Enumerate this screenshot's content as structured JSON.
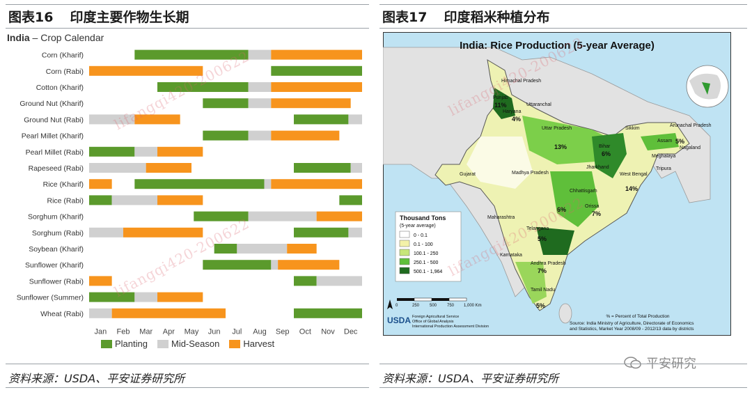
{
  "left_figure": {
    "heading_number": "图表16",
    "heading_text": "印度主要作物生长期",
    "chart_title_bold": "India",
    "chart_title_rest": " – Crop Calendar",
    "source": "资料来源：USDA、平安证券研究所"
  },
  "right_figure": {
    "heading_number": "图表17",
    "heading_text": "印度稻米种植分布",
    "map_title": "India: Rice Production (5-year Average)",
    "legend_title": "Thousand Tons",
    "legend_subtitle": "(5-year average)",
    "legend_classes": [
      {
        "label": "0 - 0.1",
        "color": "#ffffff"
      },
      {
        "label": "0.1 - 100",
        "color": "#f3f1a8"
      },
      {
        "label": "100.1 - 250",
        "color": "#c7e67a"
      },
      {
        "label": "250.1 - 500",
        "color": "#5fbf3a"
      },
      {
        "label": "500.1 - 1,964",
        "color": "#1f6b1f"
      }
    ],
    "scale_labels": [
      "0",
      "250",
      "500",
      "750",
      "1,000 Km"
    ],
    "note": "% = Percent of Total Production",
    "map_source_1": "Source: India Ministry of Agriculture, Directorate of Economics",
    "map_source_2": "and Statistics, Market Year 2008/09 - 2012/13 data by districts",
    "usda_logo": "USDA",
    "usda_line1": "Foreign Agricultural Service",
    "usda_line2": "Office of Global Analysis",
    "usda_line3": "International Production Assessment Division",
    "state_labels": [
      {
        "name": "Himachal Pradesh",
        "pct": ""
      },
      {
        "name": "Punjab",
        "pct": "11%"
      },
      {
        "name": "Haryana",
        "pct": "4%"
      },
      {
        "name": "Uttaranchal",
        "pct": ""
      },
      {
        "name": "Uttar Pradesh",
        "pct": "13%"
      },
      {
        "name": "Bihar",
        "pct": "6%"
      },
      {
        "name": "Sikkim",
        "pct": ""
      },
      {
        "name": "Arunachal Pradesh",
        "pct": ""
      },
      {
        "name": "Assam",
        "pct": "5%"
      },
      {
        "name": "Nagaland",
        "pct": ""
      },
      {
        "name": "Meghalaya",
        "pct": ""
      },
      {
        "name": "Tripura",
        "pct": ""
      },
      {
        "name": "Jharkhand",
        "pct": ""
      },
      {
        "name": "West Bengal",
        "pct": "14%"
      },
      {
        "name": "Gujarat",
        "pct": ""
      },
      {
        "name": "Madhya Pradesh",
        "pct": ""
      },
      {
        "name": "Chhattisgarh",
        "pct": "6%"
      },
      {
        "name": "Orissa",
        "pct": "7%"
      },
      {
        "name": "Maharashtra",
        "pct": ""
      },
      {
        "name": "Telangana",
        "pct": "5%"
      },
      {
        "name": "Karnataka",
        "pct": ""
      },
      {
        "name": "Andhra Pradesh",
        "pct": "7%"
      },
      {
        "name": "Tamil Nadu",
        "pct": "5%"
      }
    ],
    "source": "资料来源：USDA、平安证券研究所"
  },
  "watermark": "lifangqi420-200622",
  "brand": "平安研究",
  "colors": {
    "planting": "#5b9a2c",
    "midseason": "#d0d0d0",
    "harvest": "#f7941d"
  },
  "chart_data": {
    "type": "gantt",
    "title": "India – Crop Calendar",
    "x_unit": "month (0 = start of Jan, 12 = end of Dec)",
    "months": [
      "Jan",
      "Feb",
      "Mar",
      "Apr",
      "May",
      "Jun",
      "Jul",
      "Aug",
      "Sep",
      "Oct",
      "Nov",
      "Dec"
    ],
    "legend": [
      {
        "key": "planting",
        "label": "Planting"
      },
      {
        "key": "midseason",
        "label": "Mid-Season"
      },
      {
        "key": "harvest",
        "label": "Harvest"
      }
    ],
    "crops": [
      {
        "name": "Corn (Kharif)",
        "segments": [
          [
            "planting",
            2.0,
            7.0
          ],
          [
            "midseason",
            7.0,
            8.0
          ],
          [
            "harvest",
            8.0,
            12.0
          ]
        ]
      },
      {
        "name": "Corn (Rabi)",
        "segments": [
          [
            "harvest",
            0.0,
            5.0
          ],
          [
            "planting",
            8.0,
            12.0
          ]
        ]
      },
      {
        "name": "Cotton (Kharif)",
        "segments": [
          [
            "planting",
            3.0,
            7.0
          ],
          [
            "midseason",
            7.0,
            8.0
          ],
          [
            "harvest",
            8.0,
            12.0
          ]
        ]
      },
      {
        "name": "Ground Nut (Kharif)",
        "segments": [
          [
            "planting",
            5.0,
            7.0
          ],
          [
            "midseason",
            7.0,
            8.0
          ],
          [
            "harvest",
            8.0,
            11.5
          ]
        ]
      },
      {
        "name": "Ground Nut (Rabi)",
        "segments": [
          [
            "midseason",
            0.0,
            2.0
          ],
          [
            "harvest",
            2.0,
            4.0
          ],
          [
            "planting",
            9.0,
            11.4
          ],
          [
            "midseason",
            11.4,
            12.0
          ]
        ]
      },
      {
        "name": "Pearl Millet (Kharif)",
        "segments": [
          [
            "planting",
            5.0,
            7.0
          ],
          [
            "midseason",
            7.0,
            8.0
          ],
          [
            "harvest",
            8.0,
            11.0
          ]
        ]
      },
      {
        "name": "Pearl Millet (Rabi)",
        "segments": [
          [
            "planting",
            0.0,
            2.0
          ],
          [
            "midseason",
            2.0,
            3.0
          ],
          [
            "harvest",
            3.0,
            5.0
          ]
        ]
      },
      {
        "name": "Rapeseed (Rabi)",
        "segments": [
          [
            "midseason",
            0.0,
            2.5
          ],
          [
            "harvest",
            2.5,
            4.5
          ],
          [
            "planting",
            9.0,
            11.5
          ],
          [
            "midseason",
            11.5,
            12.0
          ]
        ]
      },
      {
        "name": "Rice (Kharif)",
        "segments": [
          [
            "harvest",
            0.0,
            1.0
          ],
          [
            "planting",
            2.0,
            7.7
          ],
          [
            "midseason",
            7.7,
            8.0
          ],
          [
            "harvest",
            8.0,
            12.0
          ]
        ]
      },
      {
        "name": "Rice (Rabi)",
        "segments": [
          [
            "planting",
            0.0,
            1.0
          ],
          [
            "midseason",
            1.0,
            3.0
          ],
          [
            "harvest",
            3.0,
            5.0
          ],
          [
            "planting",
            11.0,
            12.0
          ]
        ]
      },
      {
        "name": "Sorghum (Kharif)",
        "segments": [
          [
            "planting",
            4.6,
            7.0
          ],
          [
            "midseason",
            7.0,
            10.0
          ],
          [
            "harvest",
            10.0,
            12.0
          ]
        ]
      },
      {
        "name": "Sorghum (Rabi)",
        "segments": [
          [
            "midseason",
            0.0,
            1.5
          ],
          [
            "harvest",
            1.5,
            5.0
          ],
          [
            "planting",
            9.0,
            11.4
          ],
          [
            "midseason",
            11.4,
            12.0
          ]
        ]
      },
      {
        "name": "Soybean (Kharif)",
        "segments": [
          [
            "planting",
            5.5,
            6.5
          ],
          [
            "midseason",
            6.5,
            8.7
          ],
          [
            "harvest",
            8.7,
            10.0
          ]
        ]
      },
      {
        "name": "Sunflower (Kharif)",
        "segments": [
          [
            "planting",
            5.0,
            8.0
          ],
          [
            "midseason",
            8.0,
            8.3
          ],
          [
            "harvest",
            8.3,
            11.0
          ]
        ]
      },
      {
        "name": "Sunflower (Rabi)",
        "segments": [
          [
            "harvest",
            0.0,
            1.0
          ],
          [
            "planting",
            9.0,
            10.0
          ],
          [
            "midseason",
            10.0,
            12.0
          ]
        ]
      },
      {
        "name": "Sunflower (Summer)",
        "segments": [
          [
            "planting",
            0.0,
            2.0
          ],
          [
            "midseason",
            2.0,
            3.0
          ],
          [
            "harvest",
            3.0,
            5.0
          ]
        ]
      },
      {
        "name": "Wheat (Rabi)",
        "segments": [
          [
            "midseason",
            0.0,
            1.0
          ],
          [
            "harvest",
            1.0,
            6.0
          ],
          [
            "planting",
            9.0,
            12.0
          ]
        ]
      }
    ]
  }
}
